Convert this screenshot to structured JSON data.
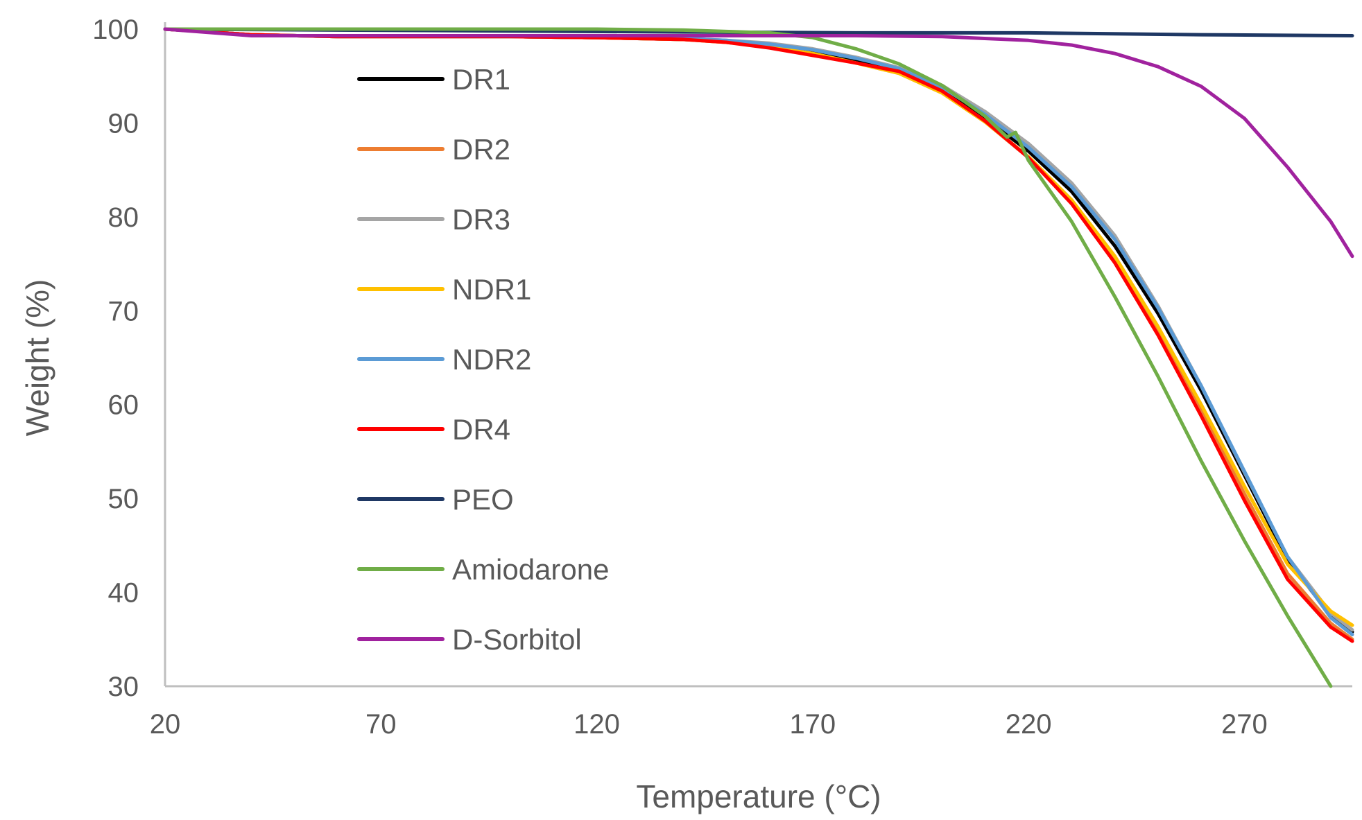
{
  "chart_data": {
    "type": "line",
    "title": "",
    "xlabel": "Temperature (°C)",
    "ylabel": "Weight (%)",
    "xlim": [
      20,
      295
    ],
    "ylim": [
      30,
      100
    ],
    "xticks": [
      20,
      70,
      120,
      170,
      220,
      270
    ],
    "yticks": [
      30,
      40,
      50,
      60,
      70,
      80,
      90,
      100
    ],
    "grid": false,
    "legend_position": "inside-left",
    "series": [
      {
        "name": "DR1",
        "color": "#000000",
        "x": [
          20,
          40,
          60,
          80,
          100,
          120,
          140,
          150,
          160,
          170,
          180,
          190,
          200,
          210,
          220,
          230,
          240,
          250,
          260,
          270,
          280,
          290,
          295
        ],
        "y": [
          100,
          99.4,
          99.2,
          99.2,
          99.2,
          99.1,
          98.9,
          98.7,
          98.3,
          97.6,
          96.6,
          95.5,
          93.5,
          90.5,
          87.0,
          82.7,
          76.9,
          69.7,
          61.5,
          52.5,
          43.5,
          37.5,
          35.8
        ]
      },
      {
        "name": "DR2",
        "color": "#ED7D31",
        "x": [
          20,
          40,
          60,
          80,
          100,
          120,
          140,
          150,
          160,
          170,
          180,
          190,
          200,
          210,
          220,
          230,
          240,
          250,
          260,
          270,
          280,
          290,
          295
        ],
        "y": [
          100,
          99.4,
          99.2,
          99.2,
          99.2,
          99.1,
          98.9,
          98.6,
          98.1,
          97.4,
          96.4,
          95.3,
          93.2,
          90.1,
          86.3,
          81.5,
          75.4,
          67.8,
          59.4,
          50.5,
          42.0,
          36.7,
          35.0
        ]
      },
      {
        "name": "DR3",
        "color": "#A5A5A5",
        "x": [
          20,
          40,
          60,
          80,
          100,
          120,
          140,
          150,
          160,
          170,
          180,
          190,
          200,
          210,
          220,
          230,
          240,
          250,
          260,
          270,
          280,
          290,
          295
        ],
        "y": [
          100,
          99.4,
          99.2,
          99.2,
          99.2,
          99.1,
          99.0,
          98.8,
          98.5,
          97.9,
          97.0,
          95.9,
          94.0,
          91.2,
          87.8,
          83.6,
          78.0,
          70.5,
          62.0,
          52.8,
          43.8,
          37.8,
          36.0
        ]
      },
      {
        "name": "NDR1",
        "color": "#FFC000",
        "x": [
          20,
          40,
          60,
          80,
          100,
          120,
          140,
          150,
          160,
          170,
          180,
          190,
          200,
          210,
          220,
          230,
          240,
          250,
          260,
          270,
          280,
          290,
          295
        ],
        "y": [
          100,
          99.4,
          99.2,
          99.2,
          99.2,
          99.1,
          98.9,
          98.6,
          98.1,
          97.4,
          96.4,
          95.3,
          93.2,
          90.1,
          86.4,
          81.8,
          75.8,
          68.3,
          60.0,
          51.3,
          43.0,
          38.0,
          36.5
        ]
      },
      {
        "name": "NDR2",
        "color": "#5B9BD5",
        "x": [
          20,
          40,
          60,
          80,
          100,
          120,
          140,
          150,
          160,
          170,
          180,
          190,
          200,
          210,
          220,
          230,
          240,
          250,
          260,
          270,
          280,
          290,
          295
        ],
        "y": [
          100,
          99.4,
          99.2,
          99.2,
          99.2,
          99.1,
          99.0,
          98.8,
          98.4,
          97.8,
          96.9,
          95.8,
          93.8,
          90.9,
          87.4,
          83.2,
          77.6,
          70.3,
          62.0,
          52.9,
          43.8,
          37.3,
          35.5
        ]
      },
      {
        "name": "DR4",
        "color": "#FF0000",
        "x": [
          20,
          40,
          60,
          80,
          100,
          120,
          140,
          150,
          160,
          170,
          180,
          190,
          200,
          210,
          220,
          230,
          240,
          250,
          260,
          270,
          280,
          290,
          295
        ],
        "y": [
          100,
          99.4,
          99.2,
          99.2,
          99.2,
          99.1,
          98.9,
          98.6,
          98.0,
          97.2,
          96.4,
          95.5,
          93.4,
          90.2,
          86.3,
          81.4,
          75.1,
          67.4,
          58.8,
          49.8,
          41.4,
          36.3,
          34.8
        ]
      },
      {
        "name": "PEO",
        "color": "#1F3864",
        "x": [
          20,
          60,
          100,
          140,
          180,
          220,
          260,
          295
        ],
        "y": [
          100,
          99.9,
          99.8,
          99.7,
          99.6,
          99.6,
          99.4,
          99.3
        ]
      },
      {
        "name": "Amiodarone",
        "color": "#70AD47",
        "x": [
          20,
          40,
          60,
          80,
          100,
          120,
          140,
          160,
          170,
          180,
          190,
          200,
          210,
          215,
          217,
          220,
          230,
          240,
          250,
          260,
          270,
          280,
          290
        ],
        "y": [
          100,
          100,
          100,
          100,
          100,
          100,
          99.9,
          99.6,
          99.1,
          97.9,
          96.3,
          94.0,
          90.7,
          88.5,
          89.0,
          86.0,
          79.5,
          71.5,
          63.0,
          54.0,
          45.5,
          37.5,
          30.0
        ]
      },
      {
        "name": "D-Sorbitol",
        "color": "#A0229E",
        "x": [
          20,
          40,
          60,
          80,
          100,
          120,
          140,
          160,
          180,
          200,
          220,
          230,
          240,
          250,
          260,
          270,
          280,
          290,
          295
        ],
        "y": [
          100,
          99.3,
          99.3,
          99.3,
          99.3,
          99.3,
          99.3,
          99.3,
          99.3,
          99.2,
          98.8,
          98.3,
          97.4,
          96.0,
          93.9,
          90.5,
          85.3,
          79.5,
          75.8
        ]
      }
    ]
  }
}
